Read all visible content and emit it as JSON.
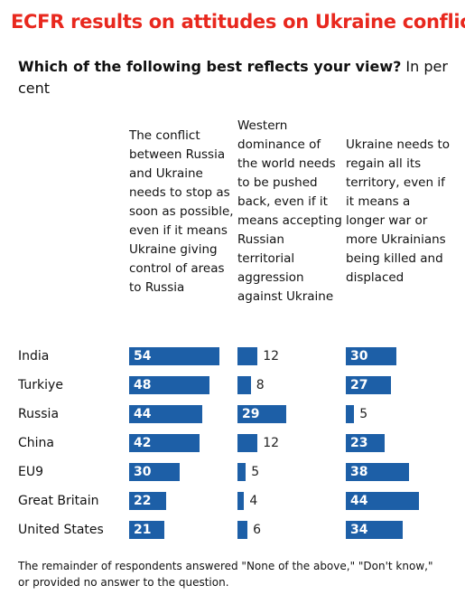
{
  "chart_data": {
    "type": "bar",
    "orientation": "horizontal",
    "title": "ECFR results on attitudes on Ukraine conflict",
    "subtitle": "Which of the following best reflects your view?",
    "subtitle_unit": "In per cent",
    "note": "The remainder of respondents answered \"None of the above,\" \"Don't know,\" or provided no answer to the question.",
    "categories": [
      "India",
      "Turkiye",
      "Russia",
      "China",
      "EU9",
      "Great Britain",
      "United States"
    ],
    "series": [
      {
        "name": "The conflict between Russia and Ukraine needs to stop as soon as possible, even if it means Ukraine giving control of areas to Russia",
        "color": "#1d5fa7",
        "values": [
          54,
          48,
          44,
          42,
          30,
          22,
          21
        ]
      },
      {
        "name": "Western dominance of the world needs to be pushed back, even if it means accepting Russian territorial aggression against Ukraine",
        "color": "#1d5fa7",
        "values": [
          12,
          8,
          29,
          12,
          5,
          4,
          6
        ]
      },
      {
        "name": "Ukraine needs to regain all its territory, even if it means a longer war or more Ukrainians being killed and displaced",
        "color": "#1d5fa7",
        "values": [
          30,
          27,
          5,
          23,
          38,
          44,
          34
        ]
      }
    ]
  }
}
